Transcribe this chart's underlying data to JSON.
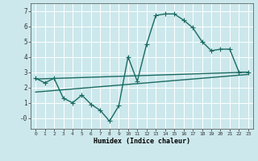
{
  "xlabel": "Humidex (Indice chaleur)",
  "bg_color": "#cce8ec",
  "grid_color": "#ffffff",
  "line_color": "#1a6b62",
  "x_ticks": [
    0,
    1,
    2,
    3,
    4,
    5,
    6,
    7,
    8,
    9,
    10,
    11,
    12,
    13,
    14,
    15,
    16,
    17,
    18,
    19,
    20,
    21,
    22,
    23
  ],
  "y_ticks": [
    0,
    1,
    2,
    3,
    4,
    5,
    6,
    7
  ],
  "y_tick_labels": [
    "-0",
    "1",
    "2",
    "3",
    "4",
    "5",
    "6",
    "7"
  ],
  "ylim": [
    -0.7,
    7.5
  ],
  "xlim": [
    -0.5,
    23.5
  ],
  "series1_x": [
    0,
    1,
    2,
    3,
    4,
    5,
    6,
    7,
    8,
    9,
    10,
    11,
    12,
    13,
    14,
    15,
    16,
    17,
    18,
    19,
    20,
    21,
    22,
    23
  ],
  "series1_y": [
    2.6,
    2.3,
    2.6,
    1.3,
    1.0,
    1.5,
    0.9,
    0.5,
    -0.2,
    0.8,
    4.0,
    2.4,
    4.8,
    6.7,
    6.8,
    6.8,
    6.4,
    5.9,
    5.0,
    4.4,
    4.5,
    4.5,
    3.0,
    3.0
  ],
  "series2_x": [
    0,
    23
  ],
  "series2_y": [
    2.55,
    3.0
  ],
  "series3_x": [
    0,
    23
  ],
  "series3_y": [
    1.7,
    2.85
  ],
  "markersize": 3,
  "linewidth": 1.0
}
